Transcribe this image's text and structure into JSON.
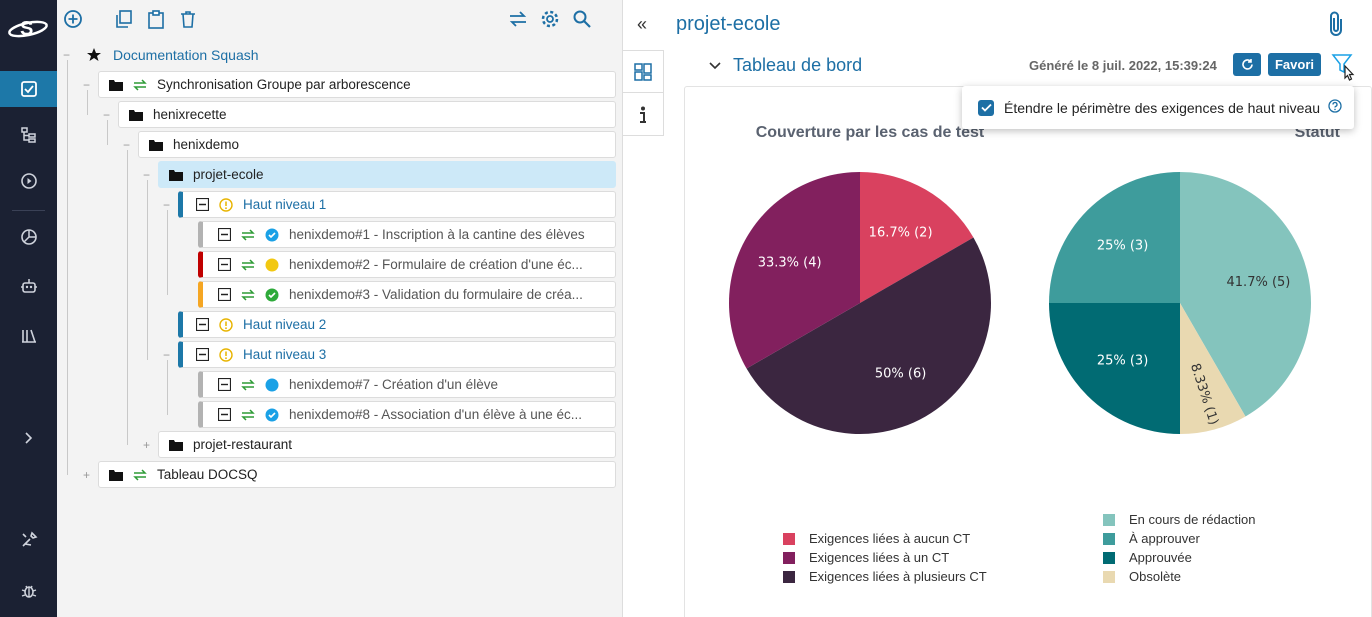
{
  "toolbar": {
    "icons": [
      "add-icon",
      "copy-icon",
      "paste-icon",
      "delete-icon",
      "sync-icon",
      "settings-icon",
      "search-icon"
    ]
  },
  "nav": {
    "items": [
      "requirements-icon",
      "test-cases-icon",
      "executions-icon",
      "reports-icon",
      "automation-icon",
      "library-icon",
      "expand-icon",
      "admin-icon",
      "bug-icon"
    ]
  },
  "tree": {
    "root": "Documentation Squash",
    "nodes": [
      {
        "label": "Synchronisation Groupe par arborescence"
      },
      {
        "label": "henixrecette"
      },
      {
        "label": "henixdemo"
      },
      {
        "label": "projet-ecole"
      },
      {
        "label": "Haut niveau 1"
      },
      {
        "label": "henixdemo#1 - Inscription à la cantine des élèves"
      },
      {
        "label": "henixdemo#2 - Formulaire de création d'une éc..."
      },
      {
        "label": "henixdemo#3 - Validation du formulaire de créa..."
      },
      {
        "label": "Haut niveau 2"
      },
      {
        "label": "Haut niveau 3"
      },
      {
        "label": "henixdemo#7 - Création d'un élève"
      },
      {
        "label": "henixdemo#8 - Association d'un élève à une éc..."
      },
      {
        "label": "projet-restaurant"
      },
      {
        "label": "Tableau DOCSQ"
      }
    ],
    "colors": {
      "link": "#1d6fa5",
      "warning": "#e8b400",
      "sync": "#2e9c36",
      "critical": "#c00000",
      "major": "#f5a623",
      "minor": "#999999"
    }
  },
  "header": {
    "title": "projet-ecole",
    "collapse": "«"
  },
  "dashboard": {
    "title": "Tableau de bord",
    "generated": "Généré le 8 juil. 2022, 15:39:24",
    "favori": "Favori",
    "popup_label": "Étendre le périmètre des exigences de haut niveau"
  },
  "chart_data": [
    {
      "type": "pie",
      "title": "Couverture par les cas de test",
      "labels": [
        "Exigences liées à aucun CT",
        "Exigences liées à plusieurs CT",
        "Exigences liées à un CT"
      ],
      "values": [
        2,
        6,
        4
      ],
      "data_labels": [
        "16.7% (2)",
        "50% (6)",
        "33.3% (4)"
      ],
      "colors": [
        "#d9415f",
        "#3b2640",
        "#82205e"
      ],
      "legend": [
        "Exigences liées à aucun CT",
        "Exigences liées à un CT",
        "Exigences liées à plusieurs CT"
      ],
      "legend_colors": [
        "#d9415f",
        "#82205e",
        "#3b2640"
      ]
    },
    {
      "type": "pie",
      "title": "Statut",
      "labels": [
        "En cours de rédaction",
        "Obsolète",
        "Approuvée",
        "À approuver"
      ],
      "values": [
        5,
        1,
        3,
        3
      ],
      "data_labels": [
        "41.7% (5)",
        "8.33% (1)",
        "25% (3)",
        "25% (3)"
      ],
      "colors": [
        "#84c4bd",
        "#e9d9b1",
        "#016b73",
        "#3e9c9c"
      ],
      "legend": [
        "En cours de rédaction",
        "À approuver",
        "Approuvée",
        "Obsolète"
      ],
      "legend_colors": [
        "#84c4bd",
        "#3e9c9c",
        "#016b73",
        "#e9d9b1"
      ]
    }
  ]
}
